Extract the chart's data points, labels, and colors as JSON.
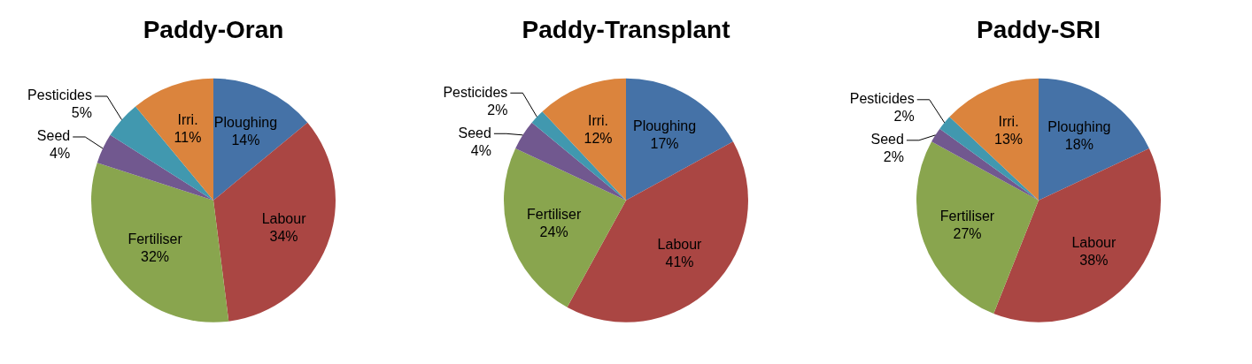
{
  "chart_data": [
    {
      "type": "pie",
      "title": "Paddy-Oran",
      "categories": [
        "Ploughing",
        "Labour",
        "Fertiliser",
        "Seed",
        "Pesticides",
        "Irri."
      ],
      "values": [
        14,
        34,
        32,
        4,
        5,
        11
      ],
      "value_labels": [
        "14%",
        "34%",
        "32%",
        "4%",
        "5%",
        "11%"
      ],
      "colors": [
        "#4572a7",
        "#aa4643",
        "#89a54e",
        "#71588f",
        "#4198af",
        "#db843d"
      ]
    },
    {
      "type": "pie",
      "title": "Paddy-Transplant",
      "categories": [
        "Ploughing",
        "Labour",
        "Fertiliser",
        "Seed",
        "Pesticides",
        "Irri."
      ],
      "values": [
        17,
        41,
        24,
        4,
        2,
        12
      ],
      "value_labels": [
        "17%",
        "41%",
        "24%",
        "4%",
        "2%",
        "12%"
      ],
      "colors": [
        "#4572a7",
        "#aa4643",
        "#89a54e",
        "#71588f",
        "#4198af",
        "#db843d"
      ]
    },
    {
      "type": "pie",
      "title": "Paddy-SRI",
      "categories": [
        "Ploughing",
        "Labour",
        "Fertiliser",
        "Seed",
        "Pesticides",
        "Irri."
      ],
      "values": [
        18,
        38,
        27,
        2,
        2,
        13
      ],
      "value_labels": [
        "18%",
        "38%",
        "27%",
        "2%",
        "2%",
        "13%"
      ],
      "colors": [
        "#4572a7",
        "#aa4643",
        "#89a54e",
        "#71588f",
        "#4198af",
        "#db843d"
      ]
    }
  ]
}
